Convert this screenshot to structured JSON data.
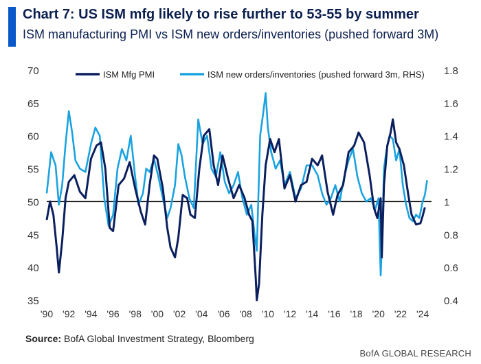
{
  "header": {
    "title": "Chart 7: US ISM mfg likely to rise further to 53-55 by summer",
    "subtitle": "ISM manufacturing PMI vs ISM new orders/inventories (pushed forward 3M)"
  },
  "footer": {
    "source_label": "Source:",
    "source_text": " BofA Global Investment Strategy, Bloomberg",
    "brand": "BofA GLOBAL RESEARCH"
  },
  "colors": {
    "accent": "#0a58c9",
    "pmi": "#0b1f5e",
    "ratio": "#1aa3e0",
    "title": "#0b1f4f"
  },
  "chart_data": {
    "type": "line",
    "title": "Chart 7: US ISM mfg likely to rise further to 53-55 by summer",
    "subtitle": "ISM manufacturing PMI vs ISM new orders/inventories (pushed forward 3M)",
    "xlabel": "",
    "ylabel": "",
    "y2label": "",
    "xlim": [
      1990,
      2024.8
    ],
    "ylim": [
      35,
      70
    ],
    "y2lim": [
      0.4,
      1.8
    ],
    "x_ticks": [
      "'90",
      "'92",
      "'94",
      "'96",
      "'98",
      "'00",
      "'02",
      "'04",
      "'06",
      "'08",
      "'10",
      "'12",
      "'14",
      "'16",
      "'18",
      "'20",
      "'22",
      "'24"
    ],
    "x_tick_years": [
      1990,
      1992,
      1994,
      1996,
      1998,
      2000,
      2002,
      2004,
      2006,
      2008,
      2010,
      2012,
      2014,
      2016,
      2018,
      2020,
      2022,
      2024
    ],
    "y_ticks": [
      "35",
      "40",
      "45",
      "50",
      "55",
      "60",
      "65",
      "70"
    ],
    "y_tick_values": [
      35,
      40,
      45,
      50,
      55,
      60,
      65,
      70
    ],
    "y2_ticks": [
      "0.4",
      "0.6",
      "0.8",
      "1",
      "1.2",
      "1.4",
      "1.6",
      "1.8"
    ],
    "y2_tick_values": [
      0.4,
      0.6,
      0.8,
      1.0,
      1.2,
      1.4,
      1.6,
      1.8
    ],
    "reference_line": {
      "axis": "left",
      "value": 50
    },
    "legend_position": "top",
    "series": [
      {
        "name": "ISM Mfg PMI",
        "axis": "left",
        "x": [
          1990.0,
          1990.3,
          1990.6,
          1990.9,
          1991.1,
          1991.4,
          1991.7,
          1992.0,
          1992.5,
          1993.0,
          1993.5,
          1994.0,
          1994.5,
          1994.9,
          1995.3,
          1995.7,
          1996.0,
          1996.5,
          1997.0,
          1997.5,
          1998.0,
          1998.5,
          1998.9,
          1999.3,
          1999.7,
          2000.0,
          2000.5,
          2000.9,
          2001.2,
          2001.6,
          2001.9,
          2002.3,
          2002.7,
          2003.0,
          2003.4,
          2003.8,
          2004.2,
          2004.7,
          2005.1,
          2005.5,
          2005.9,
          2006.4,
          2006.9,
          2007.4,
          2007.9,
          2008.3,
          2008.6,
          2008.9,
          2009.0,
          2009.2,
          2009.5,
          2009.8,
          2010.2,
          2010.6,
          2011.0,
          2011.5,
          2012.0,
          2012.5,
          2013.0,
          2013.5,
          2014.0,
          2014.5,
          2014.9,
          2015.4,
          2015.9,
          2016.3,
          2016.8,
          2017.3,
          2017.8,
          2018.2,
          2018.7,
          2019.2,
          2019.6,
          2019.9,
          2020.2,
          2020.3,
          2020.5,
          2020.8,
          2021.1,
          2021.3,
          2021.6,
          2021.9,
          2022.3,
          2022.7,
          2023.0,
          2023.4,
          2023.8,
          2024.0,
          2024.2
        ],
        "values": [
          47.2,
          50.0,
          48.0,
          43.0,
          39.2,
          44.0,
          50.5,
          53.0,
          54.0,
          51.5,
          50.5,
          56.5,
          58.5,
          59.0,
          55.0,
          46.0,
          45.5,
          52.5,
          53.5,
          56.0,
          52.0,
          48.5,
          46.5,
          52.5,
          57.0,
          56.5,
          52.0,
          46.0,
          43.0,
          41.5,
          44.5,
          51.0,
          50.5,
          48.0,
          47.5,
          55.0,
          60.0,
          61.0,
          55.5,
          52.5,
          57.0,
          53.5,
          50.5,
          52.5,
          50.5,
          48.0,
          47.0,
          38.5,
          35.0,
          37.5,
          48.0,
          55.5,
          59.5,
          57.5,
          59.5,
          52.0,
          54.0,
          50.0,
          52.5,
          53.0,
          56.5,
          55.5,
          57.0,
          51.5,
          48.0,
          51.0,
          52.5,
          57.5,
          58.5,
          60.5,
          59.0,
          54.0,
          49.0,
          47.5,
          50.5,
          41.5,
          52.5,
          58.5,
          60.5,
          62.5,
          59.0,
          58.0,
          55.5,
          51.0,
          48.0,
          46.5,
          46.7,
          47.8,
          49.1
        ]
      },
      {
        "name": "ISM new orders/inventories (pushed forward 3m, RHS)",
        "axis": "right",
        "x": [
          1990.0,
          1990.4,
          1990.8,
          1991.1,
          1991.4,
          1991.7,
          1992.0,
          1992.3,
          1992.6,
          1993.0,
          1993.5,
          1994.0,
          1994.4,
          1994.8,
          1995.2,
          1995.6,
          1996.0,
          1996.4,
          1996.8,
          1997.2,
          1997.6,
          1998.0,
          1998.3,
          1998.7,
          1999.0,
          1999.3,
          1999.7,
          2000.1,
          2000.5,
          2000.9,
          2001.2,
          2001.6,
          2001.9,
          2002.2,
          2002.5,
          2002.9,
          2003.3,
          2003.7,
          2004.1,
          2004.5,
          2004.9,
          2005.3,
          2005.7,
          2006.1,
          2006.5,
          2006.9,
          2007.3,
          2007.7,
          2008.1,
          2008.5,
          2008.8,
          2009.0,
          2009.3,
          2009.6,
          2009.8,
          2010.0,
          2010.3,
          2010.7,
          2011.1,
          2011.5,
          2012.0,
          2012.5,
          2013.0,
          2013.5,
          2014.0,
          2014.5,
          2014.9,
          2015.3,
          2015.7,
          2016.1,
          2016.5,
          2016.9,
          2017.3,
          2017.7,
          2018.1,
          2018.5,
          2018.9,
          2019.3,
          2019.7,
          2020.0,
          2020.2,
          2020.35,
          2020.5,
          2020.7,
          2021.0,
          2021.3,
          2021.6,
          2021.9,
          2022.2,
          2022.5,
          2022.8,
          2023.1,
          2023.4,
          2023.7,
          2024.0,
          2024.2,
          2024.4
        ],
        "values": [
          1.05,
          1.3,
          1.22,
          0.98,
          1.1,
          1.35,
          1.55,
          1.42,
          1.25,
          1.2,
          1.18,
          1.35,
          1.45,
          1.4,
          1.02,
          0.85,
          0.92,
          1.2,
          1.32,
          1.25,
          1.4,
          1.15,
          0.98,
          1.05,
          1.2,
          1.18,
          1.26,
          1.15,
          1.02,
          0.9,
          0.96,
          1.1,
          1.35,
          1.28,
          1.15,
          1.02,
          0.96,
          1.5,
          1.35,
          1.4,
          1.2,
          1.15,
          1.3,
          1.12,
          1.05,
          1.1,
          1.18,
          1.02,
          0.92,
          0.98,
          0.8,
          0.7,
          1.4,
          1.55,
          1.66,
          1.45,
          1.3,
          1.2,
          1.25,
          1.1,
          1.18,
          1.02,
          1.08,
          1.22,
          1.22,
          1.16,
          1.05,
          0.98,
          1.02,
          1.1,
          1.0,
          1.15,
          1.25,
          1.32,
          1.15,
          1.05,
          1.0,
          1.02,
          0.95,
          1.02,
          0.55,
          0.8,
          1.2,
          1.3,
          1.4,
          1.38,
          1.25,
          1.32,
          1.1,
          0.98,
          0.9,
          0.88,
          0.92,
          0.9,
          1.0,
          1.04,
          1.13
        ]
      }
    ]
  }
}
